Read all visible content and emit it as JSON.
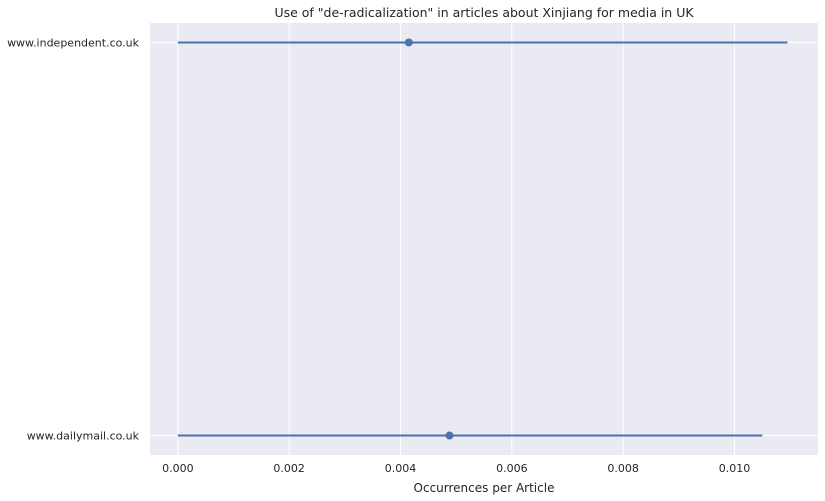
{
  "chart_data": {
    "type": "point-range",
    "title": "Use of \"de-radicalization\" in articles about Xinjiang for media in UK",
    "xlabel": "Occurrences per Article",
    "ylabel": "",
    "xlim": [
      -0.0005,
      0.0115
    ],
    "xticks": [
      0.0,
      0.002,
      0.004,
      0.006,
      0.008,
      0.01
    ],
    "xtick_labels": [
      "0.000",
      "0.002",
      "0.004",
      "0.006",
      "0.008",
      "0.010"
    ],
    "categories": [
      "www.independent.co.uk",
      "www.dailymail.co.uk"
    ],
    "points": [
      {
        "category": "www.independent.co.uk",
        "value": 0.00415,
        "ci_low": 0.0,
        "ci_high": 0.01095
      },
      {
        "category": "www.dailymail.co.uk",
        "value": 0.00488,
        "ci_low": 0.0,
        "ci_high": 0.0105
      }
    ],
    "grid": true,
    "colors": {
      "background": "#eaeaf2",
      "grid": "#ffffff",
      "series": "#4c72b0"
    }
  }
}
